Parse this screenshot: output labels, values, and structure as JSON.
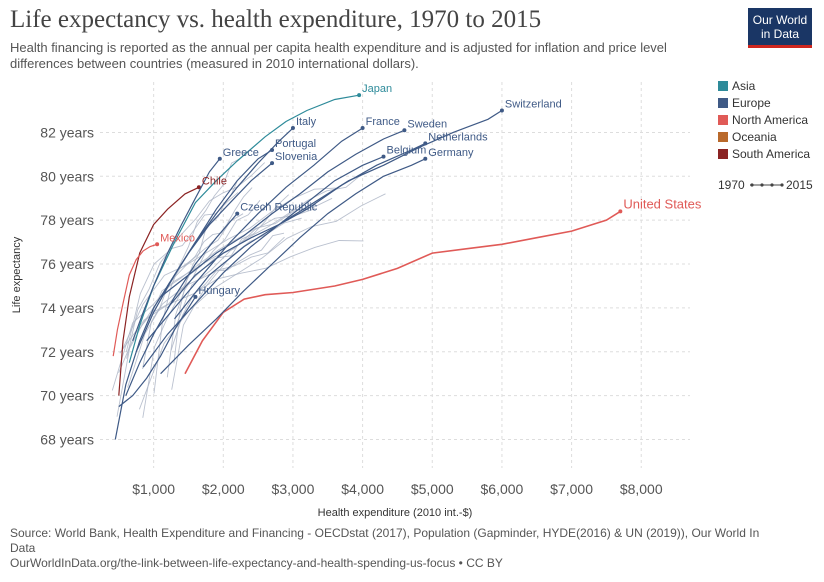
{
  "title": "Life expectancy vs. health expenditure, 1970 to 2015",
  "subtitle": "Health financing is reported as the annual per capita health expenditure and is adjusted for inflation and price level differences between countries (measured in 2010 international dollars).",
  "logo": {
    "line1": "Our World",
    "line2": "in Data"
  },
  "source": "Source: World Bank, Health Expenditure and Financing - OECDstat (2017), Population (Gapminder, HYDE(2016) & UN (2019)), Our World In Data",
  "url": "OurWorldInData.org/the-link-between-life-expectancy-and-health-spending-us-focus • CC BY",
  "colors": {
    "Asia": "#2e8b9a",
    "Europe": "#3f5a86",
    "North America": "#e05a57",
    "Oceania": "#b9692b",
    "South America": "#8b2323",
    "grid": "#dddddd",
    "background_lines": "#a9b2c3"
  },
  "chart_data": {
    "type": "scatter",
    "connected": true,
    "xlabel": "Health expenditure (2010 int.-$)",
    "ylabel": "Life expectancy",
    "xlim": [
      230,
      8700
    ],
    "ylim": [
      66.7,
      84.3
    ],
    "x_ticks": [
      1000,
      2000,
      3000,
      4000,
      5000,
      6000,
      7000,
      8000
    ],
    "x_tick_labels": [
      "$1,000",
      "$2,000",
      "$3,000",
      "$4,000",
      "$5,000",
      "$6,000",
      "$7,000",
      "$8,000"
    ],
    "y_ticks": [
      68,
      70,
      72,
      74,
      76,
      78,
      80,
      82
    ],
    "y_tick_labels": [
      "68 years",
      "70 years",
      "72 years",
      "74 years",
      "76 years",
      "78 years",
      "80 years",
      "82 years"
    ],
    "grid": true,
    "legend": {
      "position": "right",
      "entries": [
        "Asia",
        "Europe",
        "North America",
        "Oceania",
        "South America"
      ],
      "time_range": {
        "start": "1970",
        "end": "2015"
      }
    },
    "series": [
      {
        "name": "United States",
        "region": "North America",
        "x": [
          1450,
          1700,
          2000,
          2300,
          2600,
          3000,
          3600,
          4000,
          4500,
          5000,
          5500,
          6000,
          6500,
          7000,
          7500,
          7700
        ],
        "y": [
          71.0,
          72.5,
          73.8,
          74.4,
          74.6,
          74.7,
          75.0,
          75.3,
          75.8,
          76.5,
          76.7,
          76.9,
          77.2,
          77.5,
          78.0,
          78.4
        ]
      },
      {
        "name": "Japan",
        "region": "Asia",
        "x": [
          650,
          800,
          1000,
          1300,
          1600,
          1900,
          2200,
          2600,
          2900,
          3200,
          3600,
          3950
        ],
        "y": [
          71.5,
          73.2,
          75.0,
          77.0,
          78.8,
          79.8,
          80.7,
          81.8,
          82.5,
          83.0,
          83.5,
          83.7
        ]
      },
      {
        "name": "Chile",
        "region": "South America",
        "x": [
          500,
          560,
          650,
          800,
          1000,
          1200,
          1450,
          1650
        ],
        "y": [
          70.0,
          72.5,
          74.5,
          76.5,
          77.8,
          78.5,
          79.2,
          79.5
        ]
      },
      {
        "name": "Mexico",
        "region": "North America",
        "x": [
          420,
          480,
          560,
          650,
          750,
          850,
          950,
          1050
        ],
        "y": [
          71.8,
          73.0,
          74.2,
          75.5,
          76.2,
          76.6,
          76.8,
          76.9
        ]
      },
      {
        "name": "Switzerland",
        "region": "Europe",
        "x": [
          1300,
          1800,
          2300,
          2800,
          3300,
          3800,
          4300,
          4800,
          5300,
          5800,
          6000
        ],
        "y": [
          73.5,
          75.5,
          76.8,
          77.8,
          78.8,
          79.8,
          80.5,
          81.3,
          82.0,
          82.6,
          83.0
        ]
      },
      {
        "name": "Sweden",
        "region": "Europe",
        "x": [
          1100,
          1500,
          1900,
          2300,
          2700,
          3100,
          3500,
          3900,
          4300,
          4600
        ],
        "y": [
          74.5,
          75.5,
          76.5,
          77.3,
          78.3,
          79.2,
          80.2,
          81.0,
          81.7,
          82.1
        ]
      },
      {
        "name": "France",
        "region": "Europe",
        "x": [
          900,
          1300,
          1700,
          2100,
          2500,
          2900,
          3300,
          3700,
          4000
        ],
        "y": [
          72.5,
          74.0,
          75.5,
          77.0,
          78.3,
          79.5,
          80.5,
          81.6,
          82.2
        ]
      },
      {
        "name": "Netherlands",
        "region": "Europe",
        "x": [
          1200,
          1600,
          2000,
          2400,
          2800,
          3200,
          3700,
          4200,
          4700,
          4900
        ],
        "y": [
          74.0,
          75.5,
          76.5,
          77.2,
          77.8,
          78.5,
          79.6,
          80.5,
          81.2,
          81.5
        ]
      },
      {
        "name": "Germany",
        "region": "Europe",
        "x": [
          1100,
          1500,
          1900,
          2300,
          2700,
          3100,
          3500,
          3900,
          4300,
          4700,
          4900
        ],
        "y": [
          71.0,
          72.3,
          73.5,
          74.8,
          76.0,
          77.2,
          78.3,
          79.2,
          80.0,
          80.5,
          80.8
        ]
      },
      {
        "name": "Belgium",
        "region": "Europe",
        "x": [
          850,
          1200,
          1600,
          2000,
          2400,
          2800,
          3200,
          3600,
          4000,
          4300
        ],
        "y": [
          71.3,
          72.8,
          74.2,
          75.6,
          76.8,
          77.8,
          78.8,
          79.8,
          80.5,
          80.9
        ]
      },
      {
        "name": "Italy",
        "region": "Europe",
        "x": [
          750,
          1000,
          1300,
          1600,
          1900,
          2200,
          2500,
          2800,
          3000
        ],
        "y": [
          72.0,
          73.8,
          75.5,
          77.0,
          78.3,
          79.5,
          80.6,
          81.6,
          82.2
        ]
      },
      {
        "name": "Portugal",
        "region": "Europe",
        "x": [
          450,
          600,
          800,
          1000,
          1300,
          1600,
          1900,
          2200,
          2500,
          2700
        ],
        "y": [
          68.0,
          70.5,
          72.5,
          74.0,
          75.5,
          77.0,
          78.5,
          79.8,
          80.8,
          81.2
        ]
      },
      {
        "name": "Greece",
        "region": "Europe",
        "x": [
          700,
          850,
          1000,
          1200,
          1400,
          1600,
          1800,
          1950
        ],
        "y": [
          72.5,
          73.8,
          75.0,
          76.5,
          77.8,
          79.0,
          80.2,
          80.8
        ]
      },
      {
        "name": "Slovenia",
        "region": "Europe",
        "x": [
          1200,
          1500,
          1800,
          2100,
          2400,
          2700
        ],
        "y": [
          75.0,
          76.5,
          77.8,
          78.8,
          79.8,
          80.6
        ]
      },
      {
        "name": "Czech Republic",
        "region": "Europe",
        "x": [
          600,
          800,
          1000,
          1300,
          1600,
          1900,
          2200
        ],
        "y": [
          70.0,
          71.5,
          72.8,
          74.5,
          76.0,
          77.2,
          78.3
        ]
      },
      {
        "name": "Hungary",
        "region": "Europe",
        "x": [
          500,
          700,
          900,
          1100,
          1300,
          1600
        ],
        "y": [
          69.5,
          70.0,
          70.8,
          71.8,
          73.0,
          74.5
        ]
      }
    ],
    "annotations": [
      "Japan",
      "Italy",
      "France",
      "Sweden",
      "Switzerland",
      "Portugal",
      "Greece",
      "Slovenia",
      "Belgium",
      "Netherlands",
      "Germany",
      "Chile",
      "United States",
      "Czech Republic",
      "Mexico",
      "Hungary"
    ]
  }
}
